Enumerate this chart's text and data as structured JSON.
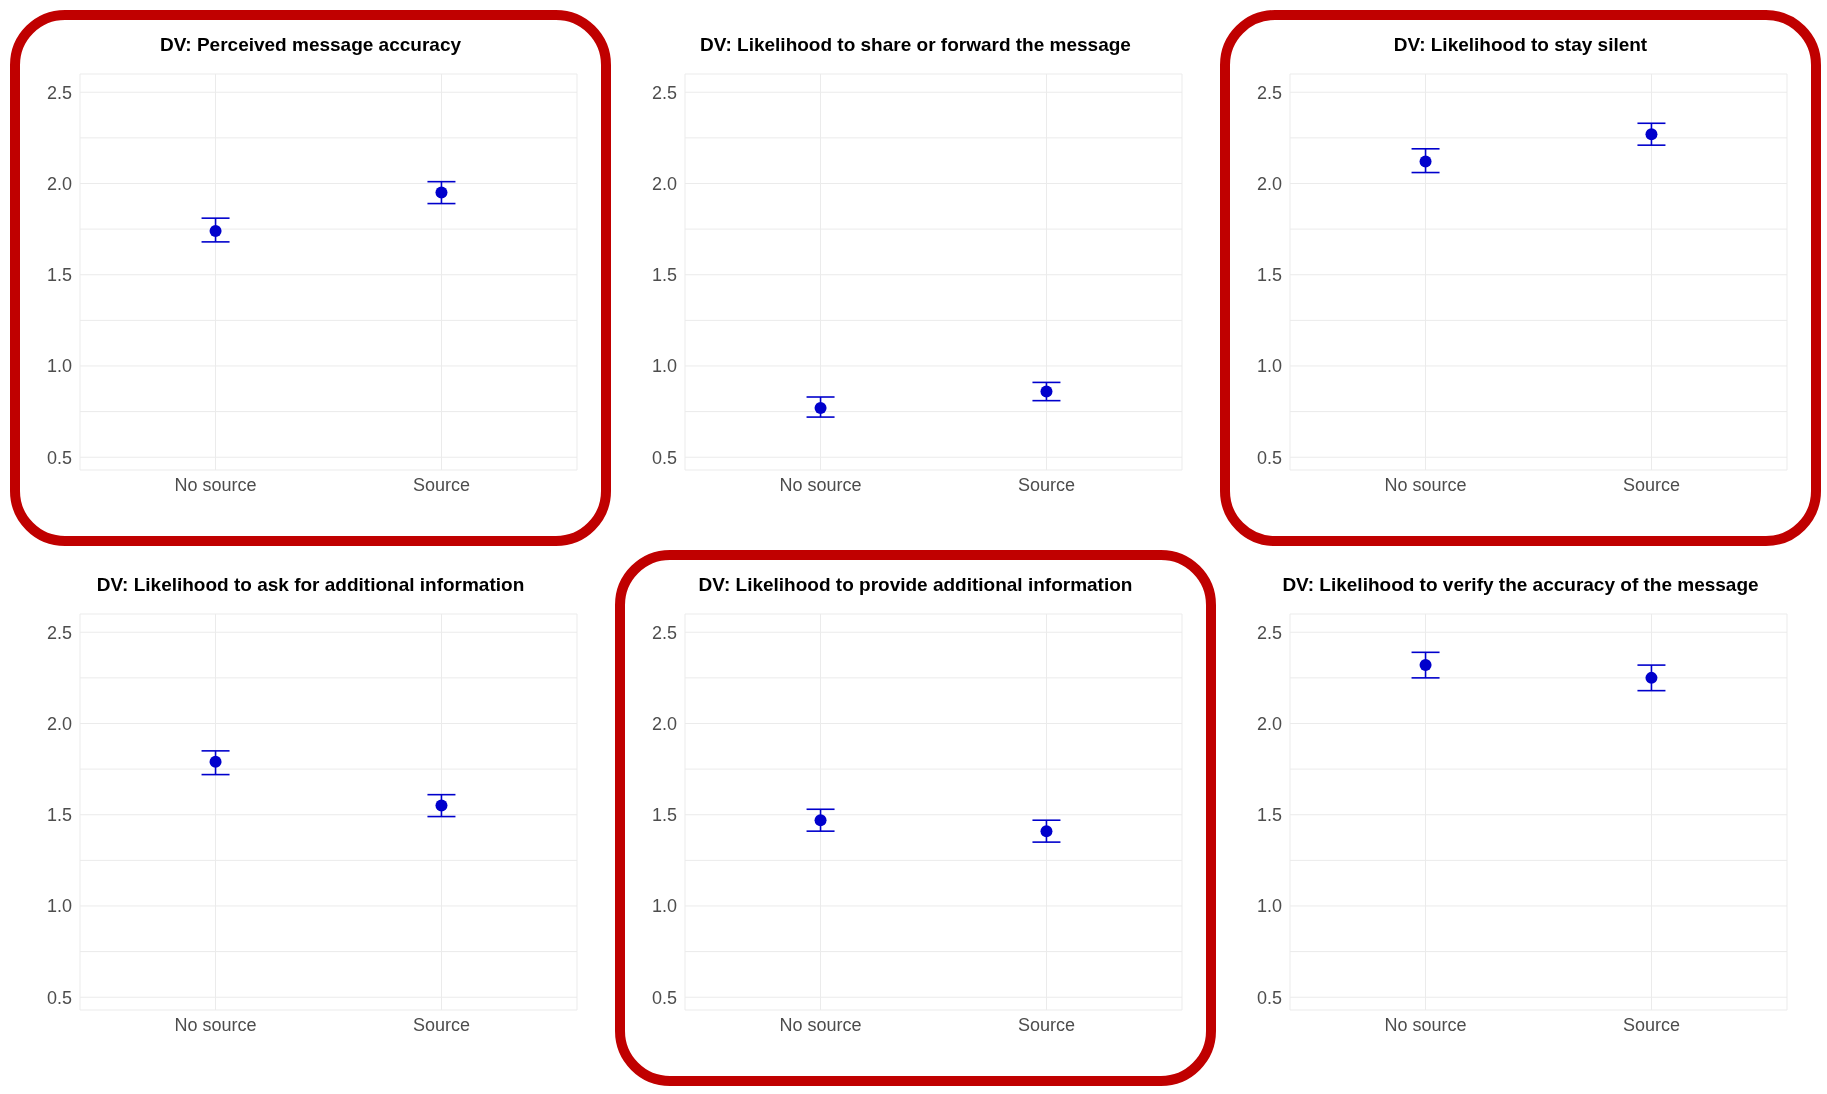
{
  "chart_data": [
    {
      "type": "scatter",
      "title": "DV: Perceived message accuracy",
      "categories": [
        "No source",
        "Source"
      ],
      "values": [
        1.74,
        1.95
      ],
      "errors": [
        [
          1.68,
          1.81
        ],
        [
          1.89,
          2.01
        ]
      ],
      "color": "#0000cc",
      "marker": "circle",
      "ylim": [
        0.43,
        2.6
      ],
      "yticks": [
        0.5,
        {
          "value": 0.75,
          "label": null
        },
        {
          "value": 1,
          "label": "1.0"
        },
        {
          "value": 1.25,
          "label": null
        },
        1.5,
        {
          "value": 1.75,
          "label": null
        },
        {
          "value": 2,
          "label": "2.0"
        },
        {
          "value": 2.25,
          "label": null
        },
        2.5
      ],
      "grid": true,
      "legend": false
    },
    {
      "type": "scatter",
      "title": "DV: Likelihood to share or forward the message",
      "categories": [
        "No source",
        "Source"
      ],
      "values": [
        0.77,
        0.86
      ],
      "errors": [
        [
          0.72,
          0.83
        ],
        [
          0.81,
          0.91
        ]
      ],
      "color": "#0000cc",
      "marker": "circle",
      "ylim": [
        0.43,
        2.6
      ],
      "yticks": [
        0.5,
        {
          "value": 0.75,
          "label": null
        },
        {
          "value": 1,
          "label": "1.0"
        },
        {
          "value": 1.25,
          "label": null
        },
        1.5,
        {
          "value": 1.75,
          "label": null
        },
        {
          "value": 2,
          "label": "2.0"
        },
        {
          "value": 2.25,
          "label": null
        },
        2.5
      ],
      "grid": true,
      "legend": false
    },
    {
      "type": "scatter",
      "title": "DV: Likelihood to stay silent",
      "categories": [
        "No source",
        "Source"
      ],
      "values": [
        2.12,
        2.27
      ],
      "errors": [
        [
          2.06,
          2.19
        ],
        [
          2.21,
          2.33
        ]
      ],
      "color": "#0000cc",
      "marker": "circle",
      "ylim": [
        0.43,
        2.6
      ],
      "yticks": [
        0.5,
        {
          "value": 0.75,
          "label": null
        },
        {
          "value": 1,
          "label": "1.0"
        },
        {
          "value": 1.25,
          "label": null
        },
        1.5,
        {
          "value": 1.75,
          "label": null
        },
        {
          "value": 2,
          "label": "2.0"
        },
        {
          "value": 2.25,
          "label": null
        },
        2.5
      ],
      "grid": true,
      "legend": false
    },
    {
      "type": "scatter",
      "title": "DV: Likelihood to ask for additional information",
      "categories": [
        "No source",
        "Source"
      ],
      "values": [
        1.79,
        1.55
      ],
      "errors": [
        [
          1.72,
          1.85
        ],
        [
          1.49,
          1.61
        ]
      ],
      "color": "#0000cc",
      "marker": "circle",
      "ylim": [
        0.43,
        2.6
      ],
      "yticks": [
        0.5,
        {
          "value": 0.75,
          "label": null
        },
        {
          "value": 1,
          "label": "1.0"
        },
        {
          "value": 1.25,
          "label": null
        },
        1.5,
        {
          "value": 1.75,
          "label": null
        },
        {
          "value": 2,
          "label": "2.0"
        },
        {
          "value": 2.25,
          "label": null
        },
        2.5
      ],
      "grid": true,
      "legend": false
    },
    {
      "type": "scatter",
      "title": "DV: Likelihood to provide additional information",
      "categories": [
        "No source",
        "Source"
      ],
      "values": [
        1.47,
        1.41
      ],
      "errors": [
        [
          1.41,
          1.53
        ],
        [
          1.35,
          1.47
        ]
      ],
      "color": "#0000cc",
      "marker": "circle",
      "ylim": [
        0.43,
        2.6
      ],
      "yticks": [
        0.5,
        {
          "value": 0.75,
          "label": null
        },
        {
          "value": 1,
          "label": "1.0"
        },
        {
          "value": 1.25,
          "label": null
        },
        1.5,
        {
          "value": 1.75,
          "label": null
        },
        {
          "value": 2,
          "label": "2.0"
        },
        {
          "value": 2.25,
          "label": null
        },
        2.5
      ],
      "grid": true,
      "legend": false
    },
    {
      "type": "scatter",
      "title": "DV: Likelihood to verify the accuracy of the message",
      "categories": [
        "No source",
        "Source"
      ],
      "values": [
        2.32,
        2.25
      ],
      "errors": [
        [
          2.25,
          2.39
        ],
        [
          2.18,
          2.32
        ]
      ],
      "color": "#0000cc",
      "marker": "circle",
      "ylim": [
        0.43,
        2.6
      ],
      "yticks": [
        0.5,
        {
          "value": 0.75,
          "label": null
        },
        {
          "value": 1,
          "label": "1.0"
        },
        {
          "value": 1.25,
          "label": null
        },
        1.5,
        {
          "value": 1.75,
          "label": null
        },
        {
          "value": 2,
          "label": "2.0"
        },
        {
          "value": 2.25,
          "label": null
        },
        2.5
      ],
      "grid": true,
      "legend": false
    }
  ]
}
